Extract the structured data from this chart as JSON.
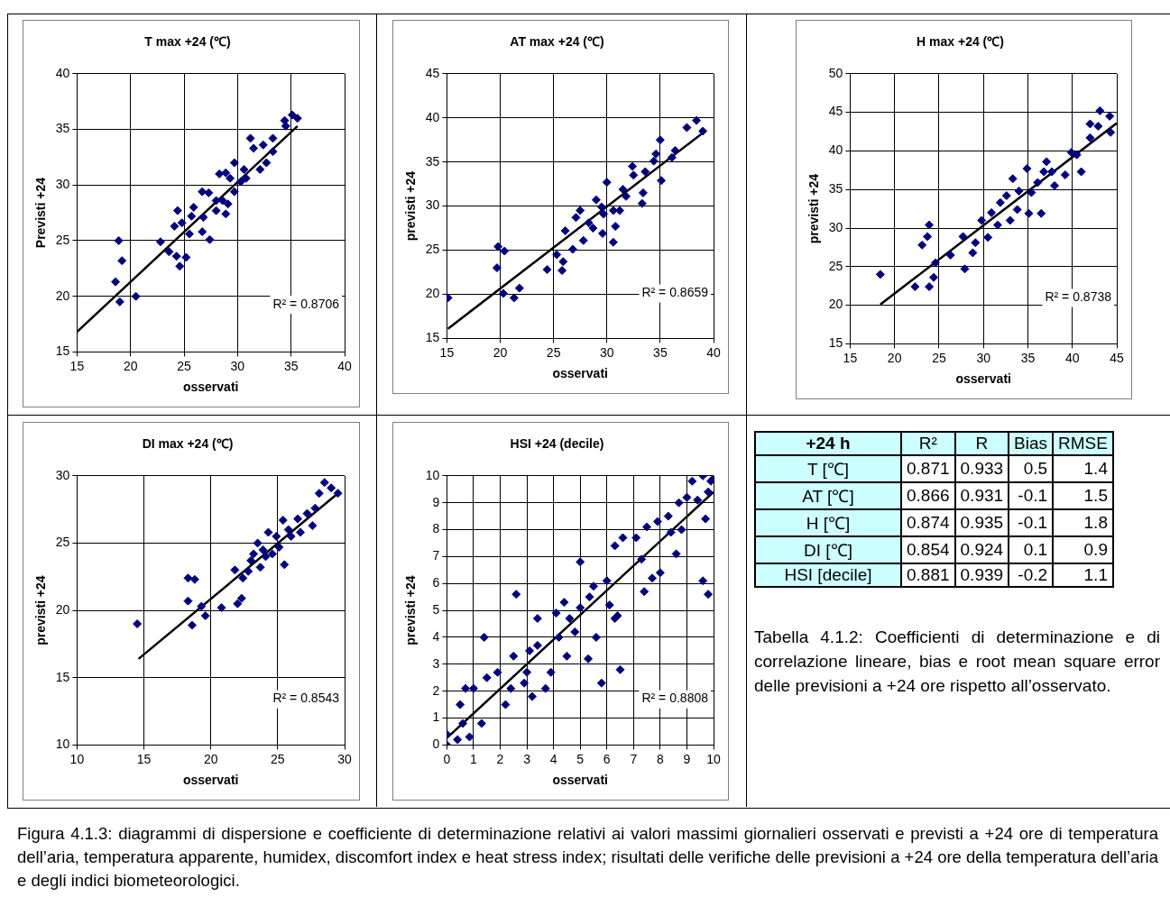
{
  "chart_data": [
    {
      "type": "scatter",
      "title": "T max +24 (℃)",
      "xlabel": "osservati",
      "ylabel": "Previsti +24",
      "xlim": [
        15,
        40
      ],
      "ylim": [
        15,
        40
      ],
      "xticks": [
        15,
        20,
        25,
        30,
        35,
        40
      ],
      "yticks": [
        15,
        20,
        25,
        30,
        35,
        40
      ],
      "grid": true,
      "marker": "diamond",
      "annotations": [
        "R² = 0.8706"
      ],
      "series": [
        {
          "type": "scatter",
          "color": "#000080",
          "x": [
            18.9,
            19.2,
            18.6,
            19.0,
            20.5,
            22.8,
            24.4,
            24.1,
            23.6,
            24.6,
            25.2,
            24.3,
            25.5,
            25.9,
            26.7,
            27.4,
            26.7,
            27.3,
            28.3,
            28.9,
            28.0,
            28.9,
            28.6,
            29.1,
            29.7,
            29.7,
            30.3,
            30.6,
            31.2,
            31.5,
            32.1,
            32.4,
            33.3,
            32.7,
            33.3,
            34.5,
            35.1,
            35.6,
            34.4,
            30.8,
            29.3,
            26.8,
            24.8,
            25.7,
            28.0
          ],
          "values": [
            25.0,
            23.2,
            21.3,
            19.5,
            20.0,
            24.9,
            27.7,
            26.3,
            24.0,
            22.7,
            23.5,
            23.6,
            25.6,
            28.0,
            29.4,
            25.1,
            25.8,
            29.3,
            31.0,
            31.1,
            27.7,
            27.4,
            28.6,
            28.3,
            32.0,
            29.4,
            30.3,
            31.4,
            34.2,
            33.3,
            31.4,
            33.6,
            34.2,
            32.0,
            33.0,
            35.3,
            36.3,
            36.0,
            35.8,
            30.6,
            30.6,
            27.1,
            26.6,
            27.2,
            28.6
          ]
        },
        {
          "type": "line",
          "marker": "none",
          "color": "#000000",
          "x": [
            15,
            35.6
          ],
          "values": [
            16.8,
            35.3
          ]
        }
      ]
    },
    {
      "type": "scatter",
      "title": "AT max +24 (℃)",
      "xlabel": "osservati",
      "ylabel": "previsti +24",
      "xlim": [
        15,
        40
      ],
      "ylim": [
        15,
        45
      ],
      "xticks": [
        15,
        20,
        25,
        30,
        35,
        40
      ],
      "yticks": [
        15,
        20,
        25,
        30,
        35,
        40,
        45
      ],
      "grid": true,
      "marker": "diamond",
      "annotations": [
        "R² = 0.8659"
      ],
      "series": [
        {
          "type": "scatter",
          "color": "#000080",
          "x": [
            15.1,
            19.8,
            20.4,
            19.7,
            20.3,
            21.3,
            21.8,
            24.4,
            25.8,
            25.9,
            25.3,
            26.1,
            26.8,
            27.1,
            27.5,
            27.8,
            28.7,
            29.0,
            29.6,
            30.0,
            30.6,
            30.6,
            30.8,
            31.5,
            32.4,
            32.5,
            33.3,
            33.4,
            33.6,
            34.4,
            35.0,
            35.1,
            34.6,
            36.4,
            36.1,
            37.5,
            38.4,
            39.0,
            29.7,
            31.2,
            28.3,
            31.8,
            29.5
          ],
          "values": [
            19.6,
            25.4,
            24.9,
            23.0,
            20.1,
            19.6,
            20.7,
            22.8,
            22.7,
            23.7,
            24.5,
            27.2,
            25.1,
            28.7,
            29.5,
            26.1,
            27.5,
            30.7,
            26.9,
            32.7,
            25.9,
            29.5,
            27.7,
            31.9,
            34.5,
            33.5,
            30.3,
            31.5,
            33.9,
            35.1,
            37.5,
            32.9,
            35.9,
            36.3,
            35.5,
            38.9,
            39.7,
            38.5,
            29.1,
            29.5,
            28.1,
            31.1,
            29.9
          ]
        },
        {
          "type": "line",
          "marker": "none",
          "color": "#000000",
          "x": [
            15.1,
            39.0
          ],
          "values": [
            16.1,
            38.3
          ]
        }
      ]
    },
    {
      "type": "scatter",
      "title": "H max +24 (℃)",
      "xlabel": "osservati",
      "ylabel": "previsti +24",
      "xlim": [
        15,
        45
      ],
      "ylim": [
        15,
        50
      ],
      "xticks": [
        15,
        20,
        25,
        30,
        35,
        40,
        45
      ],
      "yticks": [
        15,
        20,
        25,
        30,
        35,
        40,
        45,
        50
      ],
      "grid": true,
      "marker": "diamond",
      "annotations": [
        "R² = 0.8738"
      ],
      "series": [
        {
          "type": "scatter",
          "color": "#000080",
          "x": [
            18.4,
            22.3,
            23.9,
            24.4,
            24.6,
            23.1,
            23.7,
            23.9,
            26.3,
            27.9,
            27.7,
            28.8,
            29.1,
            29.8,
            30.5,
            31.6,
            31.9,
            33.0,
            33.3,
            33.8,
            34.9,
            35.1,
            35.4,
            36.5,
            37.1,
            37.7,
            38.0,
            39.2,
            39.9,
            40.5,
            41.0,
            42.0,
            42.0,
            42.9,
            43.1,
            44.2,
            44.3,
            32.6,
            30.9,
            34.0,
            36.1,
            36.8
          ],
          "values": [
            24.0,
            22.4,
            22.4,
            23.6,
            25.5,
            27.8,
            28.9,
            30.4,
            26.5,
            24.7,
            28.9,
            26.8,
            28.1,
            31.0,
            28.8,
            30.4,
            33.3,
            31.0,
            36.4,
            32.4,
            37.7,
            31.9,
            34.6,
            31.9,
            38.6,
            37.3,
            35.5,
            36.9,
            39.8,
            39.5,
            37.3,
            41.7,
            43.5,
            43.2,
            45.2,
            44.5,
            42.4,
            34.2,
            32.0,
            34.8,
            35.9,
            37.3
          ]
        },
        {
          "type": "line",
          "marker": "none",
          "color": "#000000",
          "x": [
            18.4,
            45
          ],
          "values": [
            20.1,
            43.6
          ]
        }
      ]
    },
    {
      "type": "scatter",
      "title": "DI max +24 (℃)",
      "xlabel": "osservati",
      "ylabel": "previsti +24",
      "xlim": [
        10,
        30
      ],
      "ylim": [
        10,
        30
      ],
      "xticks": [
        10,
        15,
        20,
        25,
        30
      ],
      "yticks": [
        10,
        15,
        20,
        25,
        30
      ],
      "grid": true,
      "marker": "diamond",
      "annotations": [
        "R² = 0.8543"
      ],
      "series": [
        {
          "type": "scatter",
          "color": "#000080",
          "x": [
            14.5,
            18.3,
            18.8,
            18.3,
            18.6,
            19.3,
            19.6,
            20.8,
            22.0,
            22.3,
            21.8,
            22.4,
            23.0,
            23.5,
            23.7,
            24.3,
            24.6,
            25.1,
            25.4,
            25.5,
            26.0,
            26.5,
            26.7,
            27.2,
            27.6,
            27.8,
            28.1,
            28.5,
            29.0,
            29.5,
            22.8,
            23.9,
            24.9,
            25.8,
            24.1,
            23.2
          ],
          "values": [
            19.0,
            22.4,
            22.3,
            20.7,
            18.9,
            20.3,
            19.6,
            20.2,
            20.5,
            20.9,
            23.0,
            22.4,
            23.7,
            25.0,
            23.2,
            25.8,
            24.2,
            24.7,
            26.7,
            23.4,
            25.5,
            26.8,
            25.8,
            27.2,
            26.3,
            27.6,
            28.7,
            29.5,
            29.1,
            28.7,
            22.9,
            24.5,
            25.5,
            26.0,
            24.0,
            24.2
          ]
        },
        {
          "type": "line",
          "marker": "none",
          "color": "#000000",
          "x": [
            14.6,
            29.5
          ],
          "values": [
            16.4,
            28.7
          ]
        }
      ]
    },
    {
      "type": "scatter",
      "title": "HSI +24 (decile)",
      "xlabel": "osservati",
      "ylabel": "previsti +24",
      "xlim": [
        0,
        10
      ],
      "ylim": [
        0,
        10
      ],
      "xticks": [
        0,
        1,
        2,
        3,
        4,
        5,
        6,
        7,
        8,
        9,
        10
      ],
      "yticks": [
        0,
        1,
        2,
        3,
        4,
        5,
        6,
        7,
        8,
        9,
        10
      ],
      "grid": true,
      "marker": "diamond",
      "annotations": [
        "R² = 0.8808"
      ],
      "series": [
        {
          "type": "scatter",
          "color": "#000080",
          "x": [
            0,
            0,
            0.4,
            0.85,
            0.6,
            0.5,
            0.7,
            1.0,
            1.3,
            1.4,
            1.5,
            1.9,
            2.2,
            2.4,
            2.5,
            2.6,
            2.9,
            3.0,
            3.1,
            3.2,
            3.4,
            3.4,
            3.7,
            3.9,
            4.1,
            4.2,
            4.4,
            4.5,
            4.6,
            4.8,
            5.0,
            5.0,
            5.3,
            5.35,
            5.5,
            5.6,
            5.8,
            6.0,
            6.1,
            6.3,
            6.4,
            6.5,
            6.3,
            6.6,
            7.1,
            7.3,
            7.4,
            7.5,
            7.7,
            7.9,
            8.0,
            8.3,
            8.4,
            8.6,
            8.7,
            8.8,
            9.2,
            9.0,
            9.4,
            9.6,
            9.6,
            9.7,
            9.8,
            9.9,
            10,
            9.8
          ],
          "values": [
            0,
            0.4,
            0.2,
            0.3,
            0.8,
            1.5,
            2.1,
            2.1,
            0.8,
            4.0,
            2.5,
            2.7,
            1.5,
            2.1,
            3.3,
            5.6,
            2.3,
            2.7,
            3.5,
            1.8,
            4.7,
            3.7,
            2.1,
            2.7,
            4.9,
            4.0,
            5.3,
            3.3,
            4.7,
            4.2,
            6.8,
            5.1,
            3.2,
            5.5,
            5.9,
            4.0,
            2.3,
            6.1,
            5.2,
            4.7,
            4.8,
            2.8,
            7.4,
            7.7,
            7.7,
            6.9,
            5.7,
            8.1,
            6.2,
            8.3,
            6.4,
            8.5,
            7.9,
            7.1,
            9.0,
            8.0,
            9.8,
            9.2,
            9.1,
            10.0,
            6.1,
            8.4,
            5.6,
            9.8,
            9.9,
            9.4
          ]
        },
        {
          "type": "line",
          "marker": "none",
          "color": "#000000",
          "x": [
            0,
            10
          ],
          "values": [
            0.26,
            9.4
          ]
        }
      ]
    },
    {
      "type": "heatmap",
      "ylabel": "+24 h",
      "data_labels": true,
      "categories": [
        "R²",
        "R",
        "Bias",
        "RMSE"
      ],
      "y_categories": [
        "T [℃]",
        "AT [℃]",
        "H [℃]",
        "DI [℃]",
        "HSI [decile]"
      ],
      "cells": [
        [
          0.871,
          0.933,
          0.5,
          1.4
        ],
        [
          0.866,
          0.931,
          -0.1,
          1.5
        ],
        [
          0.874,
          0.935,
          -0.1,
          1.8
        ],
        [
          0.854,
          0.924,
          0.1,
          0.9
        ],
        [
          0.881,
          0.939,
          -0.2,
          1.1
        ]
      ],
      "annotations": [
        "Tabella 4.1.2: Coefficienti di determinazione e di correlazione lineare, bias e root mean square error delle previsioni a +24 ore rispetto all’osservato.",
        "Figura 4.1.3: diagrammi di dispersione e coefficiente di determinazione relativi ai valori massimi giornalieri osservati e previsti a +24 ore di temperatura dell’aria, temperatura apparente, humidex, discomfort index e heat stress index; risultati delle verifiche delle previsioni a +24 ore della temperatura dell’aria e degli indici biometeorologici."
      ]
    }
  ]
}
